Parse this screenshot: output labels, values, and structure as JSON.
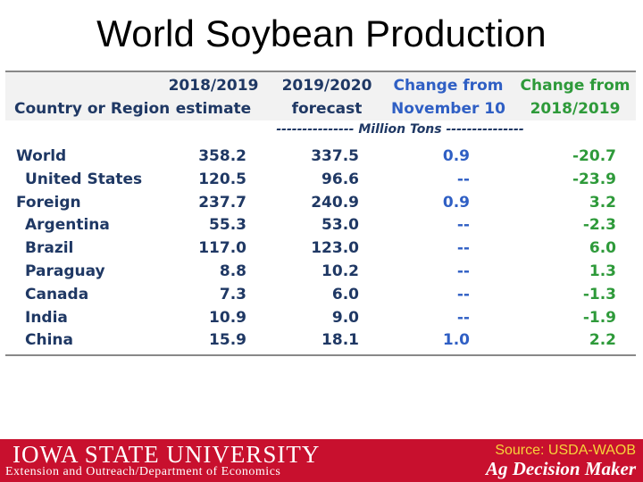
{
  "title": "World Soybean Production",
  "table": {
    "headers": {
      "country": "Country or Region",
      "col1": [
        "2018/2019",
        "estimate"
      ],
      "col2": [
        "2019/2020",
        "forecast"
      ],
      "col3": [
        "Change from",
        "November 10"
      ],
      "col4": [
        "Change from",
        "2018/2019"
      ]
    },
    "units": "--------------- Million Tons ---------------",
    "rows": [
      {
        "name": "World",
        "indent": false,
        "v1": "358.2",
        "v2": "337.5",
        "v3": "0.9",
        "v4": "-20.7"
      },
      {
        "name": "United States",
        "indent": true,
        "v1": "120.5",
        "v2": "96.6",
        "v3": "--",
        "v4": "-23.9"
      },
      {
        "name": "Foreign",
        "indent": false,
        "v1": "237.7",
        "v2": "240.9",
        "v3": "0.9",
        "v4": "3.2"
      },
      {
        "name": "Argentina",
        "indent": true,
        "v1": "55.3",
        "v2": "53.0",
        "v3": "--",
        "v4": "-2.3"
      },
      {
        "name": "Brazil",
        "indent": true,
        "v1": "117.0",
        "v2": "123.0",
        "v3": "--",
        "v4": "6.0"
      },
      {
        "name": "Paraguay",
        "indent": true,
        "v1": "8.8",
        "v2": "10.2",
        "v3": "--",
        "v4": "1.3"
      },
      {
        "name": "Canada",
        "indent": true,
        "v1": "7.3",
        "v2": "6.0",
        "v3": "--",
        "v4": "-1.3"
      },
      {
        "name": "India",
        "indent": true,
        "v1": "10.9",
        "v2": "9.0",
        "v3": "--",
        "v4": "-1.9"
      },
      {
        "name": "China",
        "indent": true,
        "v1": "15.9",
        "v2": "18.1",
        "v3": "1.0",
        "v4": "2.2"
      }
    ]
  },
  "footer": {
    "logo_text": "IOWA STATE UNIVERSITY",
    "department": "Extension and Outreach/Department of Economics",
    "source": "Source: USDA-WAOB",
    "brand": "Ag Decision Maker"
  },
  "colors": {
    "header_text": "#1f3864",
    "change_nov": "#2f5fc4",
    "change_year": "#2e9a3a",
    "footer_bg": "#c8102e",
    "source_text": "#f6d43a"
  }
}
